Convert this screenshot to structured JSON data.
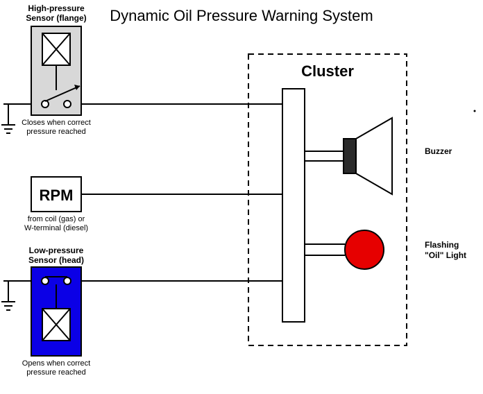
{
  "title": "Dynamic Oil Pressure Warning System",
  "cluster_label": "Cluster",
  "hp_sensor": {
    "label_line1": "High-pressure",
    "label_line2": "Sensor (flange)",
    "note_line1": "Closes when correct",
    "note_line2": "pressure reached",
    "box_fill": "#d8d8d8"
  },
  "lp_sensor": {
    "label_line1": "Low-pressure",
    "label_line2": "Sensor (head)",
    "note_line1": "Opens when correct",
    "note_line2": "pressure reached",
    "box_fill": "#0b00e6"
  },
  "rpm": {
    "label": "RPM",
    "note_line1": "from coil (gas) or",
    "note_line2": "W-terminal (diesel)"
  },
  "buzzer_label": "Buzzer",
  "light_line1": "Flashing",
  "light_line2": "\"Oil\" Light",
  "colors": {
    "stroke": "#000000",
    "light_fill": "#e60000",
    "buzzer_fill": "#2b2b2b",
    "white": "#ffffff"
  },
  "stroke_width": 2,
  "dash": "8 6"
}
